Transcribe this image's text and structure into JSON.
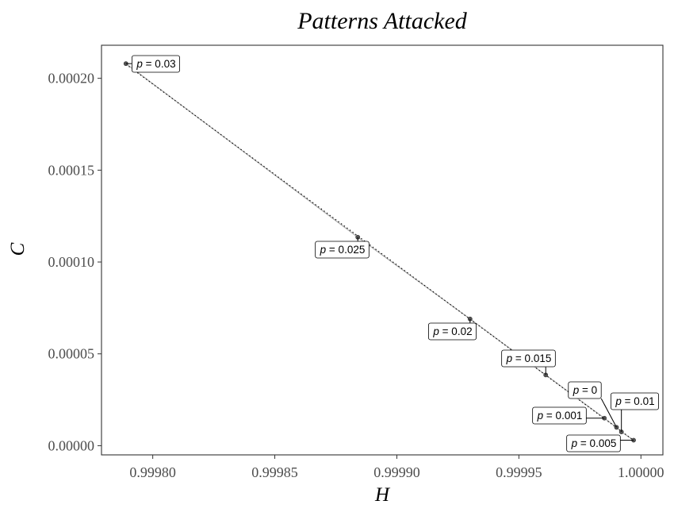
{
  "chart_data": {
    "type": "scatter",
    "title": "Patterns Attacked",
    "xlabel": "H",
    "ylabel": "C",
    "xlim": [
      0.999779,
      1.000009
    ],
    "ylim": [
      -5e-06,
      0.000218
    ],
    "x_ticks": [
      "0.99980",
      "0.99985",
      "0.99990",
      "0.99995",
      "1.00000"
    ],
    "y_ticks": [
      "0.00000",
      "0.00005",
      "0.00010",
      "0.00015",
      "0.00020"
    ],
    "grid": false,
    "points": [
      {
        "label": "p = 0",
        "p": "0",
        "x": 0.99999,
        "y": 1e-05
      },
      {
        "label": "p = 0.001",
        "p": "0.001",
        "x": 0.999985,
        "y": 1.5e-05
      },
      {
        "label": "p = 0.005",
        "p": "0.005",
        "x": 0.999997,
        "y": 3e-06
      },
      {
        "label": "p = 0.01",
        "p": "0.01",
        "x": 0.999992,
        "y": 7.5e-06
      },
      {
        "label": "p = 0.015",
        "p": "0.015",
        "x": 0.999961,
        "y": 3.85e-05
      },
      {
        "label": "p = 0.02",
        "p": "0.02",
        "x": 0.99993,
        "y": 6.9e-05
      },
      {
        "label": "p = 0.025",
        "p": "0.025",
        "x": 0.999884,
        "y": 0.0001135
      },
      {
        "label": "p = 0.03",
        "p": "0.03",
        "x": 0.999789,
        "y": 0.000208
      }
    ],
    "colors": {
      "point": "#555555",
      "path": "#aaaaaa",
      "fit": "#000000",
      "panel_border": "#333333"
    }
  }
}
